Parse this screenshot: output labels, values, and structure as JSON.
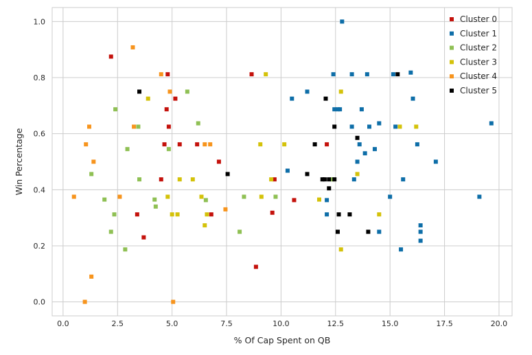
{
  "chart_data": {
    "type": "scatter",
    "title": "",
    "xlabel": "% Of Cap Spent on QB",
    "ylabel": "Win Percentage",
    "xlim": [
      -0.5,
      20.6
    ],
    "ylim": [
      -0.05,
      1.05
    ],
    "xticks": [
      0.0,
      2.5,
      5.0,
      7.5,
      10.0,
      12.5,
      15.0,
      17.5,
      20.0
    ],
    "xtick_labels": [
      "0.0",
      "2.5",
      "5.0",
      "7.5",
      "10.0",
      "12.5",
      "15.0",
      "17.5",
      "20.0"
    ],
    "yticks": [
      0.0,
      0.2,
      0.4,
      0.6,
      0.8,
      1.0
    ],
    "ytick_labels": [
      "0.0",
      "0.2",
      "0.4",
      "0.6",
      "0.8",
      "1.0"
    ],
    "grid": true,
    "legend_position": "top-right",
    "series": [
      {
        "name": "Cluster 0",
        "color": "#c4120c",
        "points": [
          [
            2.2,
            0.875
          ],
          [
            3.4,
            0.312
          ],
          [
            3.7,
            0.23
          ],
          [
            4.5,
            0.437
          ],
          [
            4.65,
            0.562
          ],
          [
            4.75,
            0.687
          ],
          [
            4.8,
            0.812
          ],
          [
            4.85,
            0.625
          ],
          [
            5.15,
            0.725
          ],
          [
            5.35,
            0.562
          ],
          [
            6.15,
            0.562
          ],
          [
            6.8,
            0.312
          ],
          [
            7.15,
            0.5
          ],
          [
            8.65,
            0.812
          ],
          [
            8.85,
            0.125
          ],
          [
            9.6,
            0.318
          ],
          [
            9.7,
            0.437
          ],
          [
            10.6,
            0.363
          ],
          [
            12.1,
            0.562
          ]
        ]
      },
      {
        "name": "Cluster 1",
        "color": "#0e6ea8",
        "points": [
          [
            10.3,
            0.468
          ],
          [
            10.5,
            0.725
          ],
          [
            11.2,
            0.75
          ],
          [
            12.1,
            0.312
          ],
          [
            12.1,
            0.363
          ],
          [
            12.4,
            0.812
          ],
          [
            12.45,
            0.687
          ],
          [
            12.6,
            0.687
          ],
          [
            12.7,
            0.687
          ],
          [
            12.8,
            1.0
          ],
          [
            13.25,
            0.625
          ],
          [
            13.25,
            0.812
          ],
          [
            13.35,
            0.437
          ],
          [
            13.5,
            0.5
          ],
          [
            13.6,
            0.562
          ],
          [
            13.7,
            0.687
          ],
          [
            13.85,
            0.53
          ],
          [
            13.95,
            0.812
          ],
          [
            14.05,
            0.625
          ],
          [
            14.3,
            0.545
          ],
          [
            14.5,
            0.25
          ],
          [
            14.5,
            0.637
          ],
          [
            15.0,
            0.375
          ],
          [
            15.15,
            0.812
          ],
          [
            15.25,
            0.625
          ],
          [
            15.5,
            0.187
          ],
          [
            15.6,
            0.437
          ],
          [
            15.95,
            0.818
          ],
          [
            16.05,
            0.725
          ],
          [
            16.25,
            0.562
          ],
          [
            16.4,
            0.218
          ],
          [
            16.4,
            0.25
          ],
          [
            16.4,
            0.273
          ],
          [
            17.1,
            0.5
          ],
          [
            19.1,
            0.375
          ],
          [
            19.65,
            0.637
          ]
        ]
      },
      {
        "name": "Cluster 2",
        "color": "#8fc054",
        "points": [
          [
            1.3,
            0.456
          ],
          [
            1.9,
            0.365
          ],
          [
            2.2,
            0.25
          ],
          [
            2.35,
            0.312
          ],
          [
            2.4,
            0.687
          ],
          [
            2.85,
            0.187
          ],
          [
            2.95,
            0.545
          ],
          [
            3.45,
            0.625
          ],
          [
            3.5,
            0.437
          ],
          [
            4.2,
            0.365
          ],
          [
            4.25,
            0.34
          ],
          [
            4.85,
            0.545
          ],
          [
            5.7,
            0.75
          ],
          [
            6.2,
            0.637
          ],
          [
            6.55,
            0.363
          ],
          [
            8.1,
            0.25
          ],
          [
            8.3,
            0.375
          ],
          [
            9.75,
            0.375
          ],
          [
            12.35,
            0.437
          ]
        ]
      },
      {
        "name": "Cluster 3",
        "color": "#d4c20a",
        "points": [
          [
            3.9,
            0.725
          ],
          [
            4.8,
            0.375
          ],
          [
            5.0,
            0.312
          ],
          [
            5.25,
            0.312
          ],
          [
            5.35,
            0.437
          ],
          [
            5.95,
            0.437
          ],
          [
            6.35,
            0.375
          ],
          [
            6.5,
            0.273
          ],
          [
            6.6,
            0.312
          ],
          [
            9.05,
            0.562
          ],
          [
            9.1,
            0.375
          ],
          [
            9.3,
            0.812
          ],
          [
            9.55,
            0.437
          ],
          [
            10.15,
            0.562
          ],
          [
            11.75,
            0.365
          ],
          [
            12.75,
            0.75
          ],
          [
            12.75,
            0.187
          ],
          [
            13.5,
            0.456
          ],
          [
            14.5,
            0.312
          ],
          [
            15.45,
            0.625
          ],
          [
            16.2,
            0.625
          ]
        ]
      },
      {
        "name": "Cluster 4",
        "color": "#f7941d",
        "points": [
          [
            0.5,
            0.375
          ],
          [
            1.0,
            0.0
          ],
          [
            1.05,
            0.562
          ],
          [
            1.2,
            0.625
          ],
          [
            1.3,
            0.09
          ],
          [
            1.4,
            0.5
          ],
          [
            2.6,
            0.375
          ],
          [
            3.2,
            0.908
          ],
          [
            3.25,
            0.625
          ],
          [
            4.5,
            0.812
          ],
          [
            4.9,
            0.75
          ],
          [
            5.05,
            0.0
          ],
          [
            6.5,
            0.562
          ],
          [
            6.75,
            0.562
          ],
          [
            7.45,
            0.33
          ]
        ]
      },
      {
        "name": "Cluster 5",
        "color": "#000000",
        "points": [
          [
            3.5,
            0.75
          ],
          [
            7.55,
            0.456
          ],
          [
            11.2,
            0.456
          ],
          [
            11.55,
            0.562
          ],
          [
            11.9,
            0.437
          ],
          [
            12.0,
            0.437
          ],
          [
            12.05,
            0.725
          ],
          [
            12.2,
            0.437
          ],
          [
            12.2,
            0.405
          ],
          [
            12.45,
            0.625
          ],
          [
            12.45,
            0.437
          ],
          [
            12.6,
            0.25
          ],
          [
            12.65,
            0.312
          ],
          [
            13.15,
            0.312
          ],
          [
            13.5,
            0.585
          ],
          [
            14.0,
            0.25
          ],
          [
            15.35,
            0.812
          ]
        ]
      }
    ]
  }
}
